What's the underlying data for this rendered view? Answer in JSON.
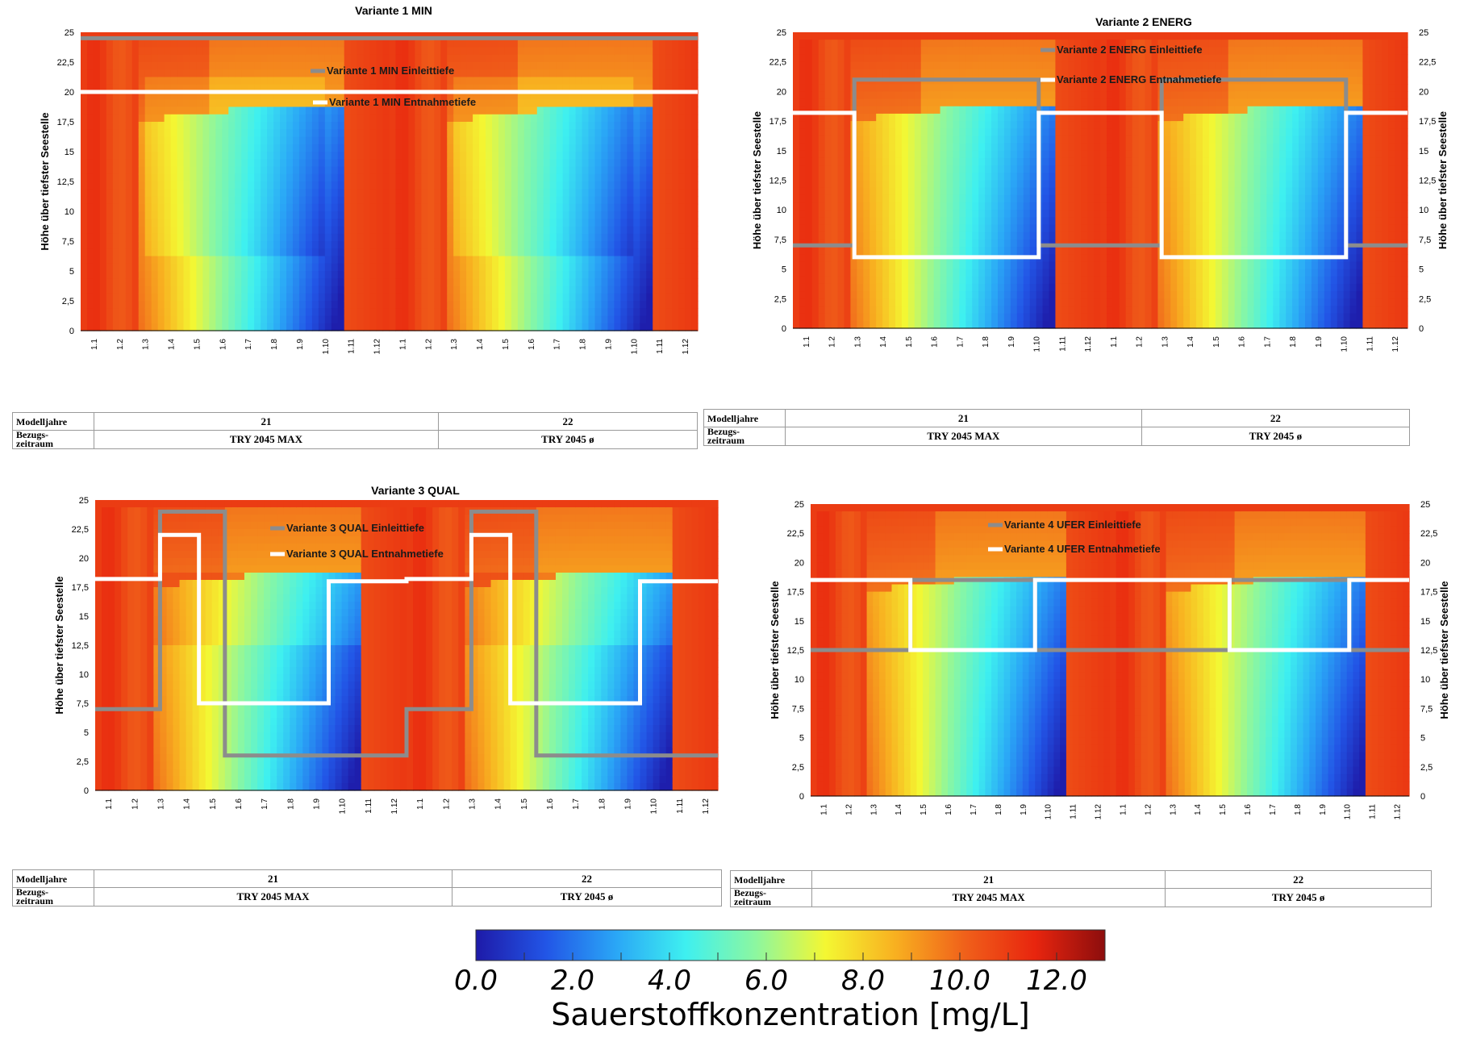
{
  "colorbar": {
    "ticks": [
      "0.0",
      "2.0",
      "4.0",
      "6.0",
      "8.0",
      "10.0",
      "12.0"
    ],
    "min": 0,
    "max": 13,
    "title": "Sauerstoffkonzentration [mg/L]",
    "colors": [
      "#1e1aa8",
      "#2255e6",
      "#2aa6f6",
      "#3ef0f0",
      "#8cf7a0",
      "#f4f732",
      "#f8b020",
      "#f0601a",
      "#e8250e",
      "#8c0d0d"
    ]
  },
  "table_labels": {
    "row1": "Modelljahre",
    "row2a": "Bezugs-",
    "row2b": "zeitraum",
    "years": [
      "21",
      "22"
    ],
    "periods": [
      "TRY 2045 MAX",
      "TRY 2045 ø"
    ]
  },
  "x_ticks": [
    "1.1",
    "1.2",
    "1.3",
    "1.4",
    "1.5",
    "1.6",
    "1.7",
    "1.8",
    "1.9",
    "1.10",
    "1.11",
    "1.12"
  ],
  "y_ticks": [
    "0",
    "2,5",
    "5",
    "7,5",
    "10",
    "12,5",
    "15",
    "17,5",
    "20",
    "22,5",
    "25"
  ],
  "y_axis_label": "Höhe über tiefster Seestelle",
  "chart_data": [
    {
      "type": "heatmap",
      "title": "Variante 1 MIN",
      "xlabel": "",
      "ylabel": "Höhe über tiefster Seestelle",
      "ylim": [
        0,
        25
      ],
      "categories": [
        "1.1",
        "1.2",
        "1.3",
        "1.4",
        "1.5",
        "1.6",
        "1.7",
        "1.8",
        "1.9",
        "1.10",
        "1.11",
        "1.12",
        "1.1",
        "1.2",
        "1.3",
        "1.4",
        "1.5",
        "1.6",
        "1.7",
        "1.8",
        "1.9",
        "1.10",
        "1.11",
        "1.12"
      ],
      "value_unit": "mg/L",
      "series": [
        {
          "name": "Variante 1 MIN Einleittiefe",
          "color": "#8c8c8c",
          "x": [
            0,
            24
          ],
          "y": [
            24.5,
            24.5
          ]
        },
        {
          "name": "Variante 1 MIN Entnahmetiefe",
          "color": "#ffffff",
          "x": [
            0,
            24
          ],
          "y": [
            20,
            20
          ]
        }
      ]
    },
    {
      "type": "heatmap",
      "title": "Variante 2 ENERG",
      "xlabel": "",
      "ylabel": "Höhe über tiefster Seestelle",
      "ylim": [
        0,
        25
      ],
      "categories": [
        "1.1",
        "1.2",
        "1.3",
        "1.4",
        "1.5",
        "1.6",
        "1.7",
        "1.8",
        "1.9",
        "1.10",
        "1.11",
        "1.12",
        "1.1",
        "1.2",
        "1.3",
        "1.4",
        "1.5",
        "1.6",
        "1.7",
        "1.8",
        "1.9",
        "1.10",
        "1.11",
        "1.12"
      ],
      "value_unit": "mg/L",
      "series": [
        {
          "name": "Variante 2 ENERG Einleittiefe",
          "color": "#8c8c8c",
          "x": [
            0,
            2.4,
            2.4,
            9.6,
            9.6,
            14.4,
            14.4,
            21.6,
            21.6,
            24
          ],
          "y": [
            7,
            7,
            21,
            21,
            7,
            7,
            21,
            21,
            7,
            7
          ]
        },
        {
          "name": "Variante 2 ENERG Entnahmetiefe",
          "color": "#ffffff",
          "x": [
            0,
            2.4,
            2.4,
            9.6,
            9.6,
            14.4,
            14.4,
            21.6,
            21.6,
            24
          ],
          "y": [
            18.2,
            18.2,
            6,
            6,
            18.2,
            18.2,
            6,
            6,
            18.2,
            18.2
          ]
        }
      ]
    },
    {
      "type": "heatmap",
      "title": "Variante 3 QUAL",
      "xlabel": "",
      "ylabel": "Höhe über tiefster Seestelle",
      "ylim": [
        0,
        25
      ],
      "categories": [
        "1.1",
        "1.2",
        "1.3",
        "1.4",
        "1.5",
        "1.6",
        "1.7",
        "1.8",
        "1.9",
        "1.10",
        "1.11",
        "1.12",
        "1.1",
        "1.2",
        "1.3",
        "1.4",
        "1.5",
        "1.6",
        "1.7",
        "1.8",
        "1.9",
        "1.10",
        "1.11",
        "1.12"
      ],
      "value_unit": "mg/L",
      "series": [
        {
          "name": "Variante 3 QUAL Einleittiefe",
          "color": "#8c8c8c",
          "x": [
            0,
            2.5,
            2.5,
            5.0,
            5.0,
            12.0,
            12.0,
            14.5,
            14.5,
            17.0,
            17.0,
            24
          ],
          "y": [
            7,
            7,
            24,
            24,
            3,
            3,
            7,
            7,
            24,
            24,
            3,
            3
          ]
        },
        {
          "name": "Variante 3 QUAL Entnahmetiefe",
          "color": "#ffffff",
          "x": [
            0,
            2.5,
            2.5,
            4.0,
            4.0,
            9.0,
            9.0,
            12.0,
            12.0,
            14.5,
            14.5,
            16.0,
            16.0,
            21.0,
            21.0,
            24
          ],
          "y": [
            18.2,
            18.2,
            22,
            22,
            7.5,
            7.5,
            18,
            18,
            18.2,
            18.2,
            22,
            22,
            7.5,
            7.5,
            18,
            18
          ]
        }
      ]
    },
    {
      "type": "heatmap",
      "title": "",
      "xlabel": "",
      "ylabel": "Höhe über tiefster Seestelle",
      "ylim": [
        0,
        25
      ],
      "categories": [
        "1.1",
        "1.2",
        "1.3",
        "1.4",
        "1.5",
        "1.6",
        "1.7",
        "1.8",
        "1.9",
        "1.10",
        "1.11",
        "1.12",
        "1.1",
        "1.2",
        "1.3",
        "1.4",
        "1.5",
        "1.6",
        "1.7",
        "1.8",
        "1.9",
        "1.10",
        "1.11",
        "1.12"
      ],
      "value_unit": "mg/L",
      "series": [
        {
          "name": "Variante 4 UFER Einleittiefe",
          "color": "#8c8c8c",
          "x": [
            0,
            4,
            4,
            9,
            9,
            16.8,
            16.8,
            21.6,
            21.6,
            24
          ],
          "y": [
            12.5,
            12.5,
            18.5,
            18.5,
            12.5,
            12.5,
            18.5,
            18.5,
            12.5,
            12.5
          ]
        },
        {
          "name": "Variante 4 UFER Entnahmetiefe",
          "color": "#ffffff",
          "x": [
            0,
            4,
            4,
            9,
            9,
            16.8,
            16.8,
            21.6,
            21.6,
            24
          ],
          "y": [
            18.5,
            18.5,
            12.5,
            12.5,
            18.5,
            18.5,
            12.5,
            12.5,
            18.5,
            18.5
          ]
        }
      ]
    }
  ]
}
